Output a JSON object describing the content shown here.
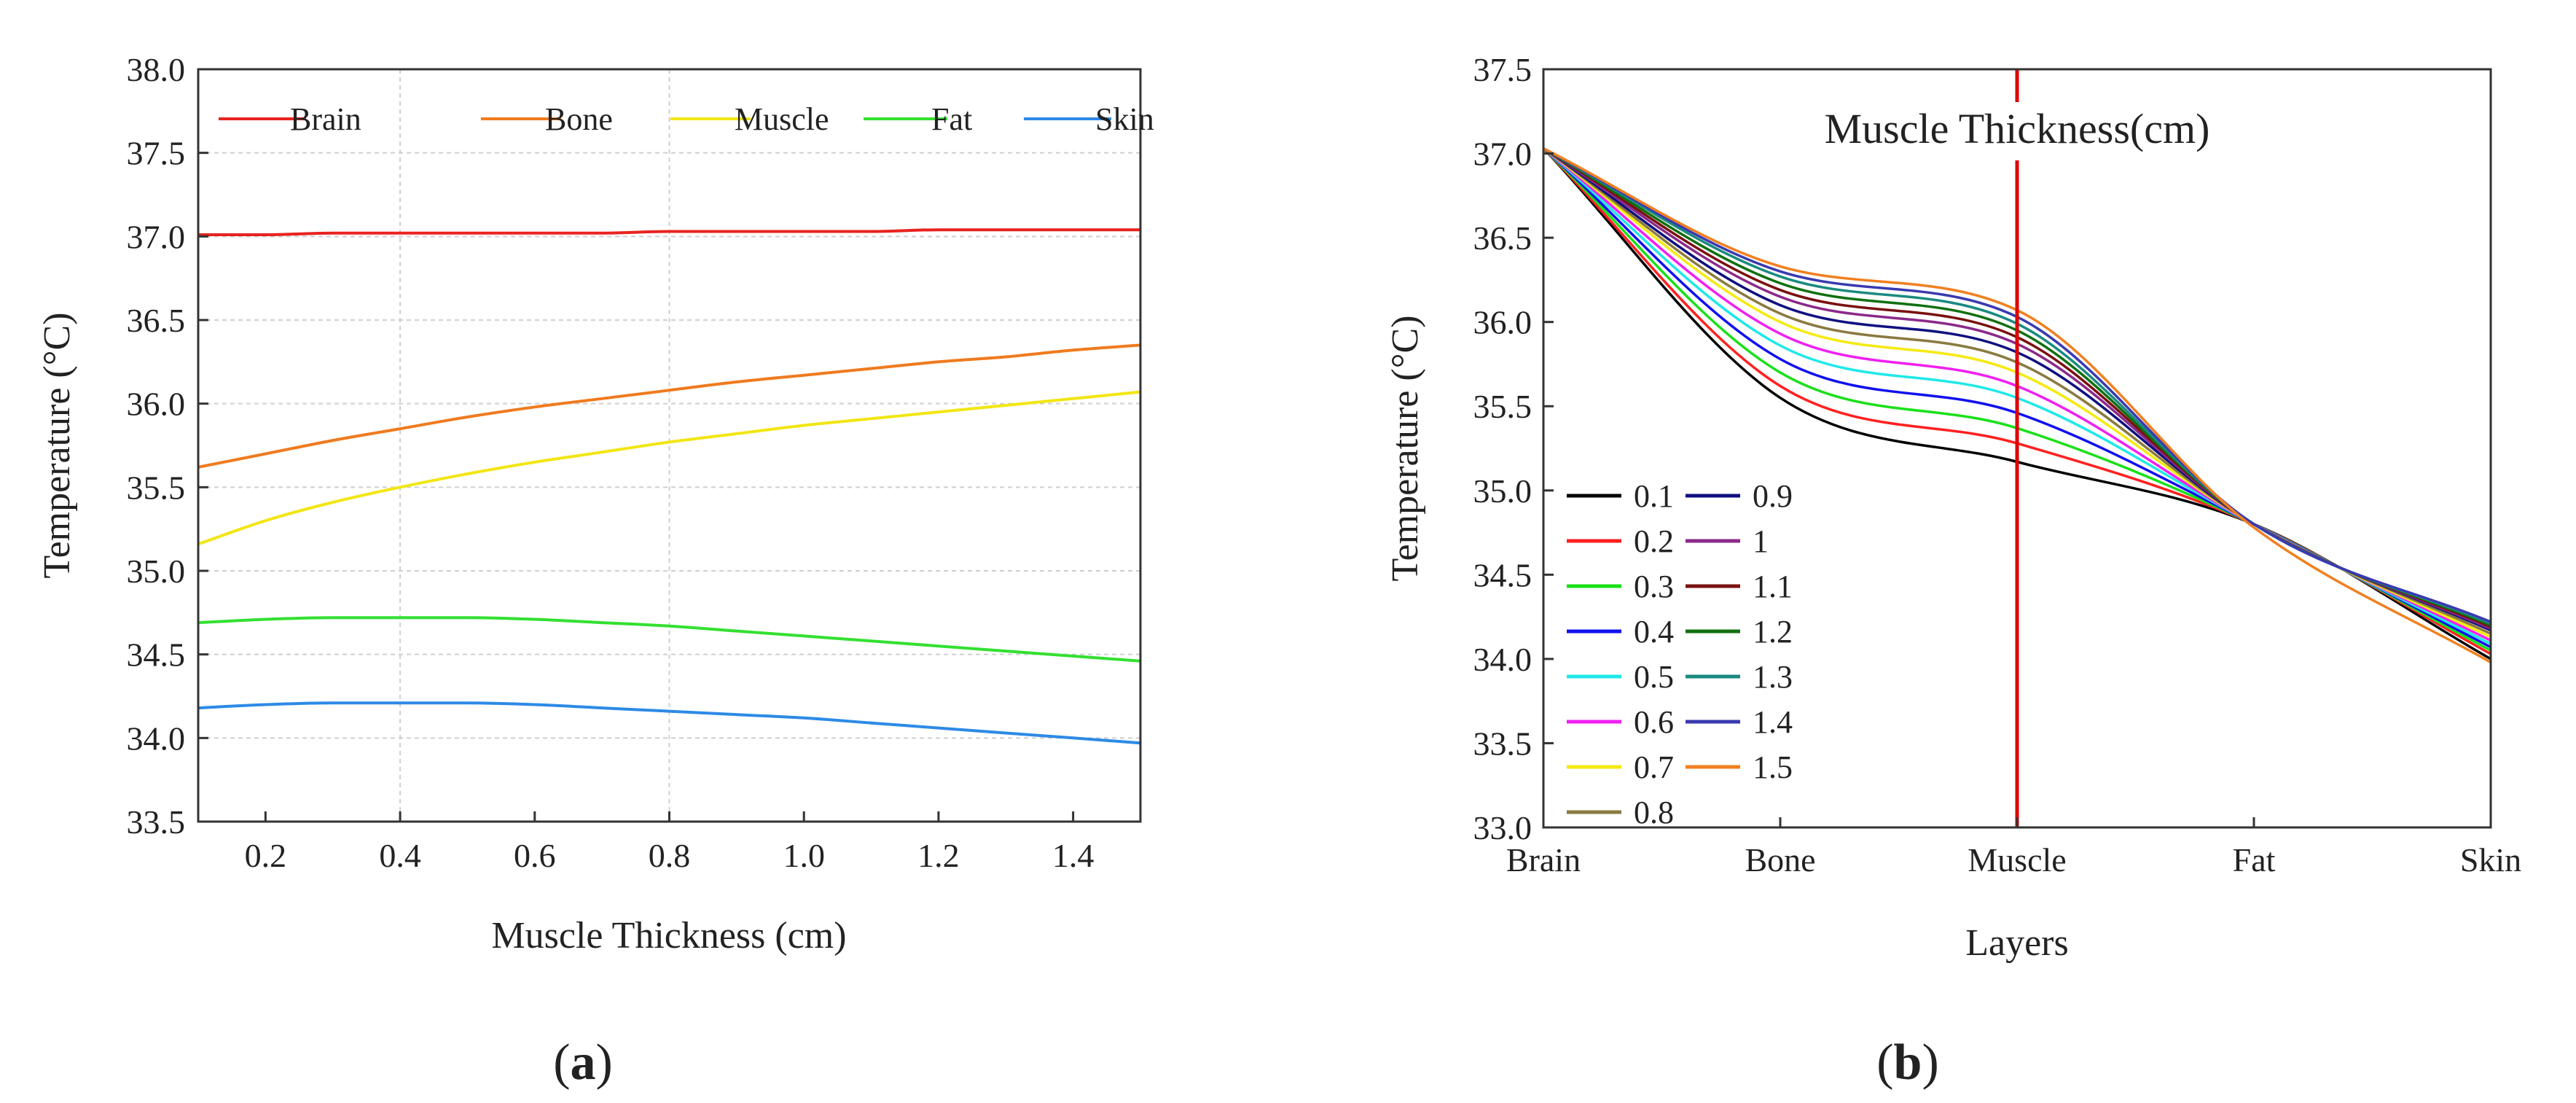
{
  "chart_data": [
    {
      "panel": "a",
      "type": "line",
      "caption_open": "(",
      "caption_letter": "a",
      "caption_close": ")",
      "xlabel": "Muscle Thickness (cm)",
      "ylabel": "Temperature (°C)",
      "xlim": [
        0.1,
        1.5
      ],
      "ylim": [
        33.5,
        38.0
      ],
      "xticks": [
        "0.2",
        "0.4",
        "0.6",
        "0.8",
        "1.0",
        "1.2",
        "1.4"
      ],
      "yticks": [
        "33.5",
        "34.0",
        "34.5",
        "35.0",
        "35.5",
        "36.0",
        "36.5",
        "37.0",
        "37.5",
        "38.0"
      ],
      "grid": true,
      "legend_position": "top",
      "x": [
        0.1,
        0.2,
        0.3,
        0.4,
        0.5,
        0.6,
        0.7,
        0.8,
        0.9,
        1.0,
        1.1,
        1.2,
        1.3,
        1.4,
        1.5
      ],
      "series": [
        {
          "name": "Brain",
          "color": "#e8231f",
          "values": [
            37.01,
            37.01,
            37.02,
            37.02,
            37.02,
            37.02,
            37.02,
            37.03,
            37.03,
            37.03,
            37.03,
            37.04,
            37.04,
            37.04,
            37.04
          ]
        },
        {
          "name": "Bone",
          "color": "#f07a1e",
          "values": [
            35.62,
            35.7,
            35.78,
            35.85,
            35.92,
            35.98,
            36.03,
            36.08,
            36.13,
            36.17,
            36.21,
            36.25,
            36.28,
            36.32,
            36.35
          ]
        },
        {
          "name": "Muscle",
          "color": "#f2e614",
          "values": [
            35.16,
            35.3,
            35.41,
            35.5,
            35.58,
            35.65,
            35.71,
            35.77,
            35.82,
            35.87,
            35.91,
            35.95,
            35.99,
            36.03,
            36.07
          ]
        },
        {
          "name": "Fat",
          "color": "#33e030",
          "values": [
            34.69,
            34.71,
            34.72,
            34.72,
            34.72,
            34.71,
            34.69,
            34.67,
            34.64,
            34.61,
            34.58,
            34.55,
            34.52,
            34.49,
            34.46
          ]
        },
        {
          "name": "Skin",
          "color": "#2d8ae6",
          "values": [
            34.18,
            34.2,
            34.21,
            34.21,
            34.21,
            34.2,
            34.18,
            34.16,
            34.14,
            34.12,
            34.09,
            34.06,
            34.03,
            34.0,
            33.97
          ]
        }
      ]
    },
    {
      "panel": "b",
      "type": "line",
      "caption_open": "(",
      "caption_letter": "b",
      "caption_close": ")",
      "xlabel": "Layers",
      "ylabel": "Temperature (°C)",
      "categories": [
        "Brain",
        "Bone",
        "Muscle",
        "Fat",
        "Skin"
      ],
      "ylim": [
        33.0,
        37.5
      ],
      "yticks": [
        "33.0",
        "33.5",
        "34.0",
        "34.5",
        "35.0",
        "35.5",
        "36.0",
        "36.5",
        "37.0",
        "37.5"
      ],
      "annotation": "Muscle Thickness(cm)",
      "marker_line": {
        "at": "Muscle",
        "color": "#e00000"
      },
      "legend_position": "bottom-left",
      "series": [
        {
          "name": "0.1",
          "color": "#000000",
          "values": [
            37.03,
            35.55,
            35.17,
            34.8,
            34.0
          ]
        },
        {
          "name": "0.2",
          "color": "#ff2020",
          "values": [
            37.03,
            35.62,
            35.28,
            34.8,
            34.03
          ]
        },
        {
          "name": "0.3",
          "color": "#19e019",
          "values": [
            37.03,
            35.7,
            35.37,
            34.8,
            34.05
          ]
        },
        {
          "name": "0.4",
          "color": "#1010f0",
          "values": [
            37.03,
            35.78,
            35.46,
            34.8,
            34.07
          ]
        },
        {
          "name": "0.5",
          "color": "#20e8e8",
          "values": [
            37.03,
            35.86,
            35.55,
            34.8,
            34.09
          ]
        },
        {
          "name": "0.6",
          "color": "#f020f0",
          "values": [
            37.03,
            35.93,
            35.62,
            34.8,
            34.11
          ]
        },
        {
          "name": "0.7",
          "color": "#f5ea10",
          "values": [
            37.03,
            36.0,
            35.7,
            34.8,
            34.13
          ]
        },
        {
          "name": "0.8",
          "color": "#8a7a40",
          "values": [
            37.03,
            36.05,
            35.76,
            34.8,
            34.15
          ]
        },
        {
          "name": "0.9",
          "color": "#101080",
          "values": [
            37.03,
            36.1,
            35.82,
            34.8,
            34.17
          ]
        },
        {
          "name": "1",
          "color": "#8a2a8a",
          "values": [
            37.03,
            36.15,
            35.87,
            34.8,
            34.18
          ]
        },
        {
          "name": "1.1",
          "color": "#7a1010",
          "values": [
            37.03,
            36.19,
            35.91,
            34.8,
            34.19
          ]
        },
        {
          "name": "1.2",
          "color": "#107010",
          "values": [
            37.03,
            36.23,
            35.95,
            34.8,
            34.2
          ]
        },
        {
          "name": "1.3",
          "color": "#1a8a80",
          "values": [
            37.03,
            36.27,
            35.99,
            34.8,
            34.21
          ]
        },
        {
          "name": "1.4",
          "color": "#3a3ab0",
          "values": [
            37.03,
            36.3,
            36.03,
            34.8,
            34.22
          ]
        },
        {
          "name": "1.5",
          "color": "#f08020",
          "values": [
            37.03,
            36.33,
            36.07,
            34.78,
            33.98
          ]
        }
      ]
    }
  ]
}
